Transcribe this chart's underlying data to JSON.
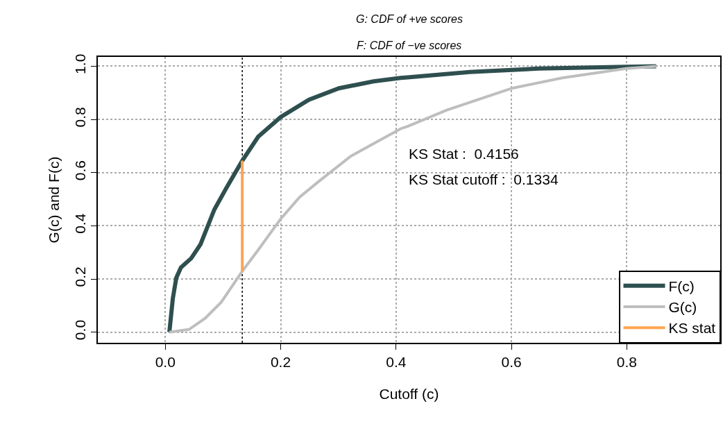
{
  "chart_data": {
    "type": "line",
    "title": "G: CDF of +ve scores",
    "subtitle": "F: CDF of −ve scores",
    "xlabel": "Cutoff (c)",
    "ylabel": "G(c) and F(c)",
    "series": [
      {
        "name": "F(c)",
        "color": "#2f4f4f",
        "x": [
          0.007,
          0.013,
          0.019,
          0.027,
          0.045,
          0.061,
          0.085,
          0.105,
          0.1334,
          0.161,
          0.2,
          0.249,
          0.301,
          0.361,
          0.408,
          0.42,
          0.528,
          0.648,
          0.799,
          0.851
        ],
        "values": [
          0.0,
          0.126,
          0.204,
          0.243,
          0.278,
          0.33,
          0.461,
          0.539,
          0.645,
          0.735,
          0.809,
          0.874,
          0.917,
          0.943,
          0.956,
          0.958,
          0.978,
          0.991,
          0.998,
          1.0
        ]
      },
      {
        "name": "G(c)",
        "color": "#bebebe",
        "x": [
          0.007,
          0.041,
          0.069,
          0.097,
          0.1334,
          0.161,
          0.2,
          0.233,
          0.265,
          0.321,
          0.361,
          0.408,
          0.42,
          0.488,
          0.601,
          0.688,
          0.799,
          0.851
        ],
        "values": [
          0.0,
          0.01,
          0.052,
          0.113,
          0.229,
          0.309,
          0.426,
          0.508,
          0.565,
          0.661,
          0.709,
          0.765,
          0.774,
          0.835,
          0.917,
          0.956,
          0.991,
          1.0
        ]
      },
      {
        "name": "KS stat",
        "color": "#ffa54f",
        "x": [
          0.1334,
          0.1334
        ],
        "values": [
          0.229,
          0.645
        ]
      }
    ],
    "xlim": [
      -0.117,
      0.962
    ],
    "ylim": [
      -0.04,
      1.035
    ],
    "xticks": [
      {
        "value": 0,
        "label": "0.0"
      },
      {
        "value": 0.2,
        "label": "0.2"
      },
      {
        "value": 0.4,
        "label": "0.4"
      },
      {
        "value": 0.6,
        "label": "0.6"
      },
      {
        "value": 0.8,
        "label": "0.8"
      }
    ],
    "yticks": [
      {
        "value": 0,
        "label": "0.0"
      },
      {
        "value": 0.2,
        "label": "0.2"
      },
      {
        "value": 0.4,
        "label": "0.4"
      },
      {
        "value": 0.6,
        "label": "0.6"
      },
      {
        "value": 0.8,
        "label": "0.8"
      },
      {
        "value": 1,
        "label": "1.0"
      }
    ],
    "ref_lines": [
      {
        "axis": "x",
        "value": 0.1334,
        "color": "#000000",
        "line_style": "dotted"
      }
    ],
    "annotations": [
      "KS Stat :  0.4156",
      "KS Stat cutoff :  0.1334"
    ],
    "grid": true,
    "legend": "bottom right",
    "marker": "none",
    "line_style": "solid"
  }
}
